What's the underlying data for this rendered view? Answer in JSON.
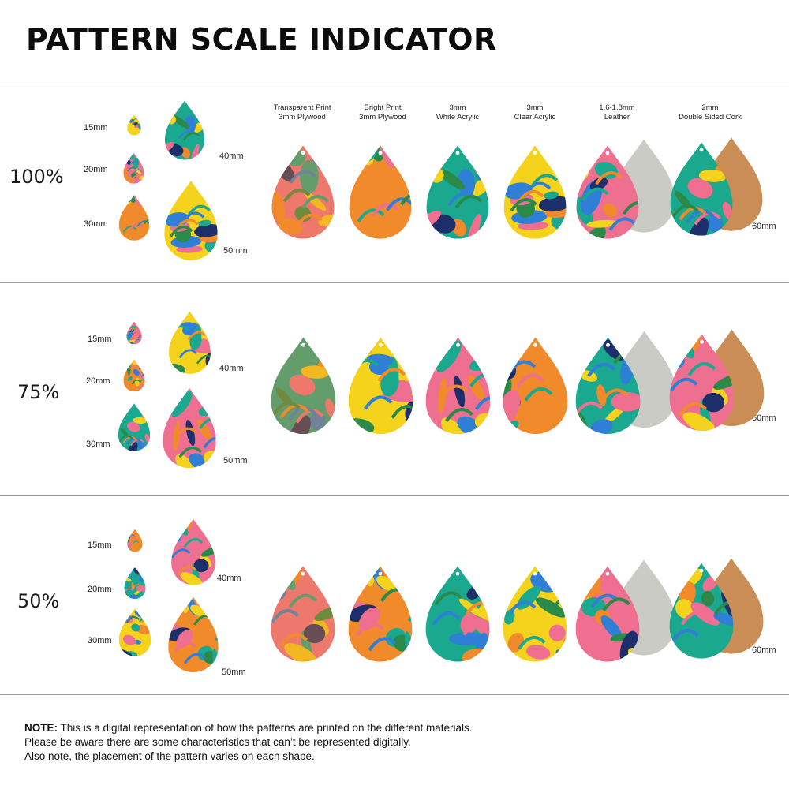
{
  "title": "PATTERN SCALE INDICATOR",
  "materials": [
    {
      "line1": "Transparent Print",
      "line2": "3mm Plywood"
    },
    {
      "line1": "Bright Print",
      "line2": "3mm Plywood"
    },
    {
      "line1": "3mm",
      "line2": "White Acrylic"
    },
    {
      "line1": "3mm",
      "line2": "Clear Acrylic"
    },
    {
      "line1": "1.6-1.8mm",
      "line2": "Leather"
    },
    {
      "line1": "2mm",
      "line2": "Double Sided Cork"
    }
  ],
  "sections": [
    {
      "scale": "100%",
      "sizes": [
        "15mm",
        "20mm",
        "30mm",
        "40mm",
        "50mm"
      ],
      "large_size": "60mm"
    },
    {
      "scale": "75%",
      "sizes": [
        "15mm",
        "20mm",
        "30mm",
        "40mm",
        "50mm"
      ],
      "large_size": "60mm"
    },
    {
      "scale": "50%",
      "sizes": [
        "15mm",
        "20mm",
        "30mm",
        "40mm",
        "50mm"
      ],
      "large_size": "60mm"
    }
  ],
  "note": {
    "bold": "NOTE:",
    "line1": " This is a digital representation of how the patterns are printed on the different materials.",
    "line2": "Please be aware there are some characteristics that can’t be represented digitally.",
    "line3": "Also note, the placement of the pattern varies on each shape."
  },
  "colors": {
    "yellow": "#f5d21c",
    "pink": "#ee6f8f",
    "teal": "#1aa88f",
    "blue": "#2f7fd6",
    "orange": "#f08a2a",
    "green": "#2b8a4a",
    "navy": "#1d2f6b",
    "leather": "#c9cbc4",
    "cork": "#c98d55"
  }
}
